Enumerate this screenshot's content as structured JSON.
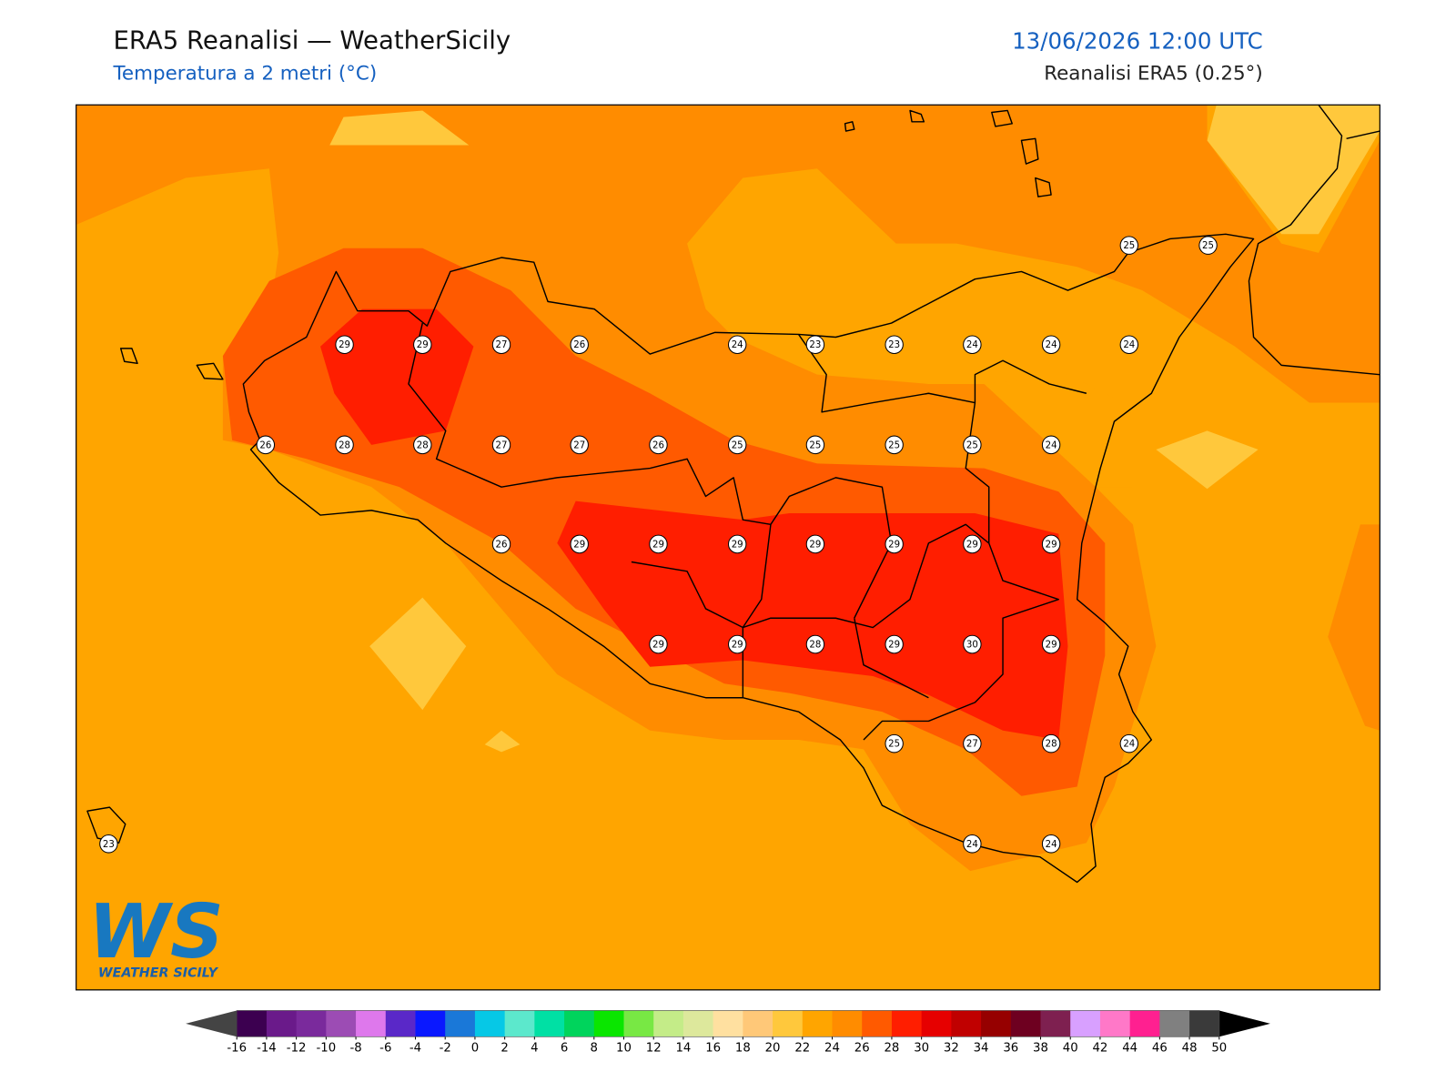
{
  "header": {
    "title": "ERA5 Reanalisi — WeatherSicily",
    "subtitle": "Temperatura a 2 metri (°C)",
    "datetime": "13/06/2026 12:00 UTC",
    "source": "Reanalisi ERA5 (0.25°)"
  },
  "map": {
    "stations": [
      25,
      25,
      29,
      29,
      27,
      26,
      24,
      23,
      23,
      24,
      24,
      24,
      26,
      28,
      28,
      27,
      27,
      26,
      25,
      25,
      25,
      25,
      24,
      26,
      29,
      29,
      29,
      29,
      29,
      29,
      29,
      29,
      29,
      28,
      29,
      30,
      29,
      25,
      27,
      28,
      24,
      23,
      24,
      24
    ]
  },
  "logo": {
    "initials": "WS",
    "name": "WEATHER SICILY"
  },
  "colorbar": {
    "ticks": [
      -16,
      -14,
      -12,
      -10,
      -8,
      -6,
      -4,
      -2,
      0,
      2,
      4,
      6,
      8,
      10,
      12,
      14,
      16,
      18,
      20,
      22,
      24,
      26,
      28,
      30,
      32,
      34,
      36,
      38,
      40,
      42,
      44,
      46,
      48,
      50
    ],
    "colors": [
      "#3c0050",
      "#6a1a8a",
      "#7a2a9c",
      "#9c4cb4",
      "#de78ec",
      "#5a28c8",
      "#0a18ff",
      "#1a78d8",
      "#06c8e6",
      "#5ce8cc",
      "#00e0a4",
      "#00d45c",
      "#0ae600",
      "#78e844",
      "#c4ec88",
      "#dde89c",
      "#ffe0a0",
      "#ffc878",
      "#ffc83c",
      "#ffa500",
      "#ff8c00",
      "#ff5a00",
      "#ff1e00",
      "#e60000",
      "#c00000",
      "#960000",
      "#6e0020",
      "#7e2050",
      "#d8a0ff",
      "#ff78c8",
      "#ff2090",
      "#808080",
      "#3a3a3a"
    ]
  }
}
